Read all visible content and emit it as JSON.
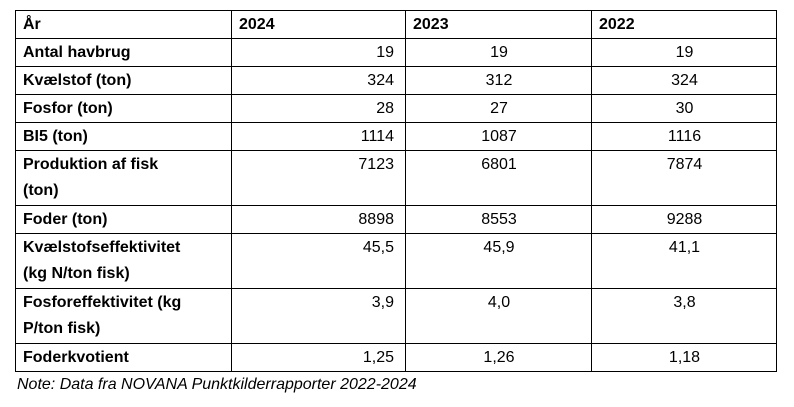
{
  "chart_data": {
    "type": "table",
    "columns": [
      "År",
      "2024",
      "2023",
      "2022"
    ],
    "rows": [
      [
        "Antal havbrug",
        "19",
        "19",
        "19"
      ],
      [
        "Kvælstof (ton)",
        "324",
        "312",
        "324"
      ],
      [
        "Fosfor (ton)",
        "28",
        "27",
        "30"
      ],
      [
        "BI5 (ton)",
        "1114",
        "1087",
        "1116"
      ],
      [
        "Produktion af fisk\n(ton)",
        "7123",
        "6801",
        "7874"
      ],
      [
        "Foder (ton)",
        "8898",
        "8553",
        "9288"
      ],
      [
        "Kvælstofseffektivitet\n(kg N/ton fisk)",
        "45,5",
        "45,9",
        "41,1"
      ],
      [
        "Fosforeffektivitet (kg\nP/ton fisk)",
        "3,9",
        "4,0",
        "3,8"
      ],
      [
        "Foderkvotient",
        "1,25",
        "1,26",
        "1,18"
      ]
    ],
    "note": "Note: Data fra NOVANA Punktkilderrapporter 2022-2024",
    "layout": {
      "grid": "all-borders",
      "value_alignment_2024": "right",
      "value_alignment_2023": "center",
      "value_alignment_2022": "center"
    }
  }
}
